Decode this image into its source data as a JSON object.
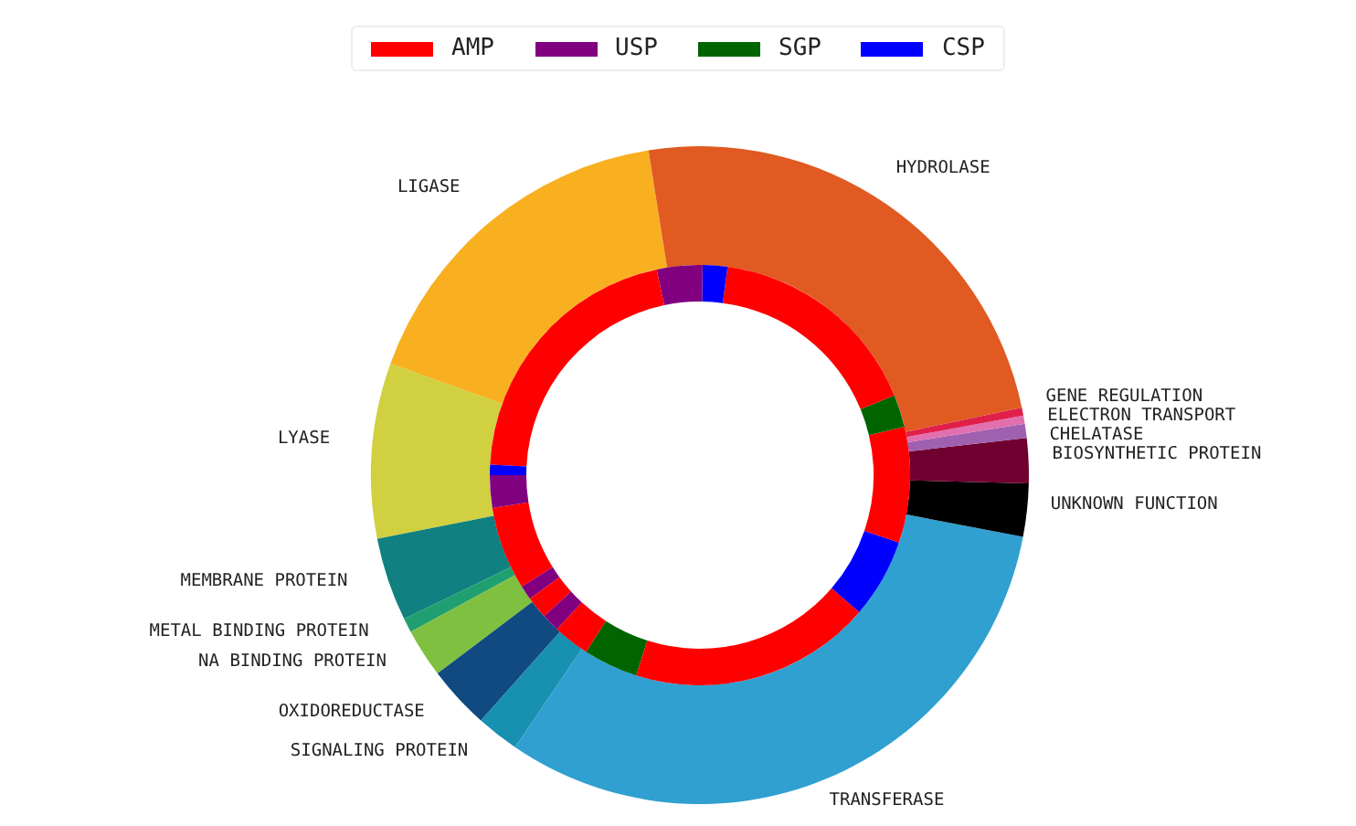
{
  "chart_data": [
    {
      "type": "donut",
      "categories": [
        "LIGASE",
        "LYASE",
        "MEMBRANE PROTEIN",
        "METAL BINDING PROTEIN",
        "NA BINDING PROTEIN",
        "OXIDOREDUCTASE",
        "SIGNALING PROTEIN",
        "TRANSFERASE",
        "UNKNOWN FUNCTION",
        "BIOSYNTHETIC PROTEIN",
        "CHELATASE",
        "ELECTRON TRANSPORT",
        "GENE REGULATION",
        "HYDROLASE"
      ],
      "values": [
        17.0,
        8.6,
        4.1,
        0.7,
        2.4,
        3.1,
        2.1,
        31.5,
        2.6,
        2.2,
        0.7,
        0.4,
        0.4,
        24.2
      ],
      "colors": [
        "#f8b020",
        "#d0d040",
        "#108080",
        "#20a070",
        "#80c040",
        "#104a80",
        "#1890b0",
        "#30a0d0",
        "#000000",
        "#700030",
        "#a060b0",
        "#e070b0",
        "#e0204a",
        "#e05a22"
      ]
    },
    {
      "type": "donut",
      "legend": "top",
      "categories": [
        "AMP",
        "USP",
        null,
        null,
        null,
        "SGP",
        null,
        "CSP",
        null,
        null,
        null,
        null,
        null,
        null,
        null,
        null
      ],
      "values": [
        6.4,
        1.1,
        1.7,
        1.4,
        2.8,
        4.2,
        18.6,
        6.1,
        8.9,
        2.5,
        16.7,
        1.9,
        3.5,
        20.9,
        0.8,
        2.5
      ],
      "colors": [
        "#ff0000",
        "#800080",
        "#ff0000",
        "#800080",
        "#ff0000",
        "#006400",
        "#ff0000",
        "#0000ff",
        "#ff0000",
        "#006400",
        "#ff0000",
        "#0000ff",
        "#800080",
        "#ff0000",
        "#0000ff",
        "#800080"
      ]
    }
  ]
}
